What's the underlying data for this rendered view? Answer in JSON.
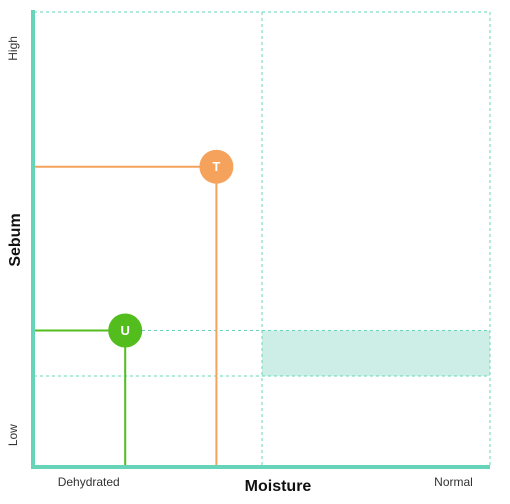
{
  "chart_data": {
    "type": "scatter",
    "x_label": "Moisture",
    "y_label": "Sebum",
    "xlim": [
      0,
      100
    ],
    "ylim": [
      0,
      100
    ],
    "xticks": [
      {
        "value": 12,
        "label": "Dehydrated"
      },
      {
        "value": 92,
        "label": "Normal"
      }
    ],
    "yticks": [
      {
        "value": 7,
        "label": "Low"
      },
      {
        "value": 92,
        "label": "High"
      }
    ],
    "grid_x": [
      50,
      100
    ],
    "grid_y": [
      20,
      30,
      100
    ],
    "highlight": {
      "xlim": [
        50,
        100
      ],
      "ylim": [
        20,
        30
      ],
      "color": "#cdeee6"
    },
    "axis_color": "#66d4b8",
    "grid_color": "#66d4b8",
    "points": [
      {
        "label": "T",
        "x": 40,
        "y": 66,
        "color": "#f5a35c"
      },
      {
        "label": "U",
        "x": 20,
        "y": 30,
        "color": "#52bd1c"
      }
    ]
  }
}
